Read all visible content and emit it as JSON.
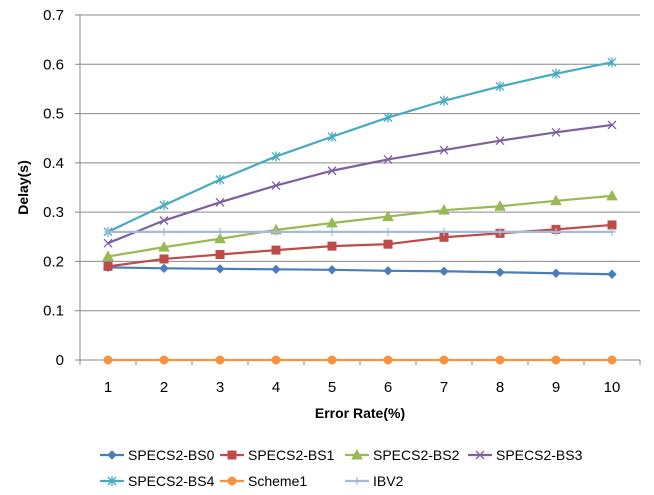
{
  "chart_data": {
    "type": "line",
    "title": "",
    "xlabel": "Error Rate(%)",
    "ylabel": "Delay(s)",
    "x": [
      1,
      2,
      3,
      4,
      5,
      6,
      7,
      8,
      9,
      10
    ],
    "xlim": [
      0.5,
      10.5
    ],
    "ylim": [
      0,
      0.7
    ],
    "y_ticks": [
      "0",
      "0.1",
      "0.2",
      "0.3",
      "0.4",
      "0.5",
      "0.6",
      "0.7"
    ],
    "x_ticks": [
      "1",
      "2",
      "3",
      "4",
      "5",
      "6",
      "7",
      "8",
      "9",
      "10"
    ],
    "grid": "horizontal",
    "legend_position": "bottom",
    "series": [
      {
        "name": "SPECS2-BS0",
        "color": "#4A7EBB",
        "marker": "diamond",
        "values": [
          0.188,
          0.186,
          0.185,
          0.184,
          0.183,
          0.181,
          0.18,
          0.178,
          0.176,
          0.174
        ]
      },
      {
        "name": "SPECS2-BS1",
        "color": "#BE4B48",
        "marker": "square",
        "values": [
          0.19,
          0.205,
          0.214,
          0.223,
          0.231,
          0.235,
          0.249,
          0.257,
          0.265,
          0.274
        ]
      },
      {
        "name": "SPECS2-BS2",
        "color": "#98B954",
        "marker": "triangle",
        "values": [
          0.21,
          0.229,
          0.246,
          0.264,
          0.278,
          0.291,
          0.304,
          0.312,
          0.323,
          0.333
        ]
      },
      {
        "name": "SPECS2-BS3",
        "color": "#7D60A0",
        "marker": "x",
        "values": [
          0.237,
          0.283,
          0.32,
          0.354,
          0.384,
          0.407,
          0.426,
          0.445,
          0.462,
          0.477
        ]
      },
      {
        "name": "SPECS2-BS4",
        "color": "#46AAC5",
        "marker": "star",
        "values": [
          0.26,
          0.314,
          0.366,
          0.413,
          0.453,
          0.492,
          0.526,
          0.555,
          0.581,
          0.604
        ]
      },
      {
        "name": "Scheme1",
        "color": "#F69240",
        "marker": "circle",
        "values": [
          0.0,
          0.0,
          0.0,
          0.0,
          0.0,
          0.0,
          0.0,
          0.0,
          0.0,
          0.0
        ]
      },
      {
        "name": "IBV2",
        "color": "#A5B9D8",
        "marker": "plus",
        "values": [
          0.26,
          0.26,
          0.26,
          0.26,
          0.26,
          0.26,
          0.26,
          0.26,
          0.26,
          0.26
        ]
      }
    ]
  }
}
